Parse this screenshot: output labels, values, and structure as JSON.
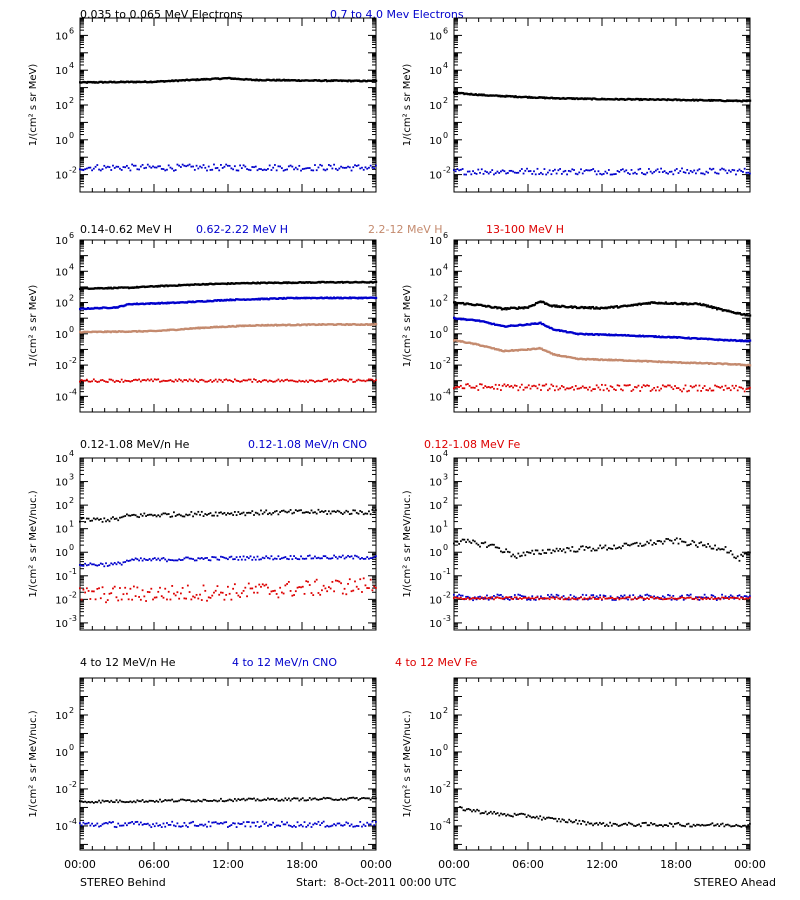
{
  "colors": {
    "black": "#000000",
    "blue": "#0000cc",
    "tan": "#c48a6e",
    "red": "#dd0000"
  },
  "rows": [
    {
      "title_parts": [
        {
          "text": "0.035 to 0.065 MeV Electrons",
          "color": "#000000"
        },
        {
          "text": "0.7 to 4.0 Mev Electrons",
          "color": "#0000cc"
        }
      ],
      "ylabel": "1/(cm² s sr MeV)"
    },
    {
      "title_parts": [
        {
          "text": "0.14-0.62 MeV H",
          "color": "#000000"
        },
        {
          "text": "0.62-2.22 MeV H",
          "color": "#0000cc"
        },
        {
          "text": "2.2-12 MeV H",
          "color": "#c48a6e"
        },
        {
          "text": "13-100 MeV H",
          "color": "#dd0000"
        }
      ],
      "ylabel": "1/(cm² s sr MeV)"
    },
    {
      "title_parts": [
        {
          "text": "0.12-1.08 MeV/n He",
          "color": "#000000"
        },
        {
          "text": "0.12-1.08 MeV/n CNO",
          "color": "#0000cc"
        },
        {
          "text": "0.12-1.08 MeV Fe",
          "color": "#dd0000"
        }
      ],
      "ylabel": "1/(cm² s sr MeV/nuc.)"
    },
    {
      "title_parts": [
        {
          "text": "4 to 12 MeV/n He",
          "color": "#000000"
        },
        {
          "text": "4 to 12 MeV/n CNO",
          "color": "#0000cc"
        },
        {
          "text": "4 to 12 MeV Fe",
          "color": "#dd0000"
        }
      ],
      "ylabel": "1/(cm² s sr MeV/nuc.)"
    }
  ],
  "x_ticks": [
    "00:00",
    "06:00",
    "12:00",
    "18:00",
    "00:00"
  ],
  "footer": {
    "left": "STEREO Behind",
    "center": "Start:  8-Oct-2011 00:00 UTC",
    "right": "STEREO Ahead"
  },
  "chart_data": [
    {
      "type": "scatter",
      "panel": "row1-behind",
      "y_scale": "log",
      "ylim": [
        0.001,
        10000000
      ],
      "xlim": [
        0,
        24
      ],
      "y_ticks": [
        {
          "exp": 6
        },
        {
          "exp": 4
        },
        {
          "exp": 2
        },
        {
          "exp": 0
        },
        {
          "exp": -2
        }
      ],
      "series": [
        {
          "color": "#000000",
          "style": "line",
          "points": [
            [
              0,
              2000
            ],
            [
              6,
              2200
            ],
            [
              10,
              3000
            ],
            [
              12,
              3500
            ],
            [
              14,
              2800
            ],
            [
              18,
              2600
            ],
            [
              24,
              2400
            ]
          ],
          "scatter": 0.03
        },
        {
          "color": "#0000cc",
          "style": "dots",
          "points": [
            [
              0,
              0.025
            ],
            [
              12,
              0.025
            ],
            [
              24,
              0.025
            ]
          ],
          "scatter": 0.18
        }
      ]
    },
    {
      "type": "scatter",
      "panel": "row1-ahead",
      "y_scale": "log",
      "ylim": [
        0.001,
        10000000
      ],
      "xlim": [
        0,
        24
      ],
      "y_ticks": [
        {
          "exp": 6
        },
        {
          "exp": 4
        },
        {
          "exp": 2
        },
        {
          "exp": 0
        },
        {
          "exp": -2
        }
      ],
      "series": [
        {
          "color": "#000000",
          "style": "line",
          "points": [
            [
              0,
              500
            ],
            [
              3,
              350
            ],
            [
              8,
              250
            ],
            [
              12,
              220
            ],
            [
              18,
              200
            ],
            [
              24,
              170
            ]
          ],
          "scatter": 0.03
        },
        {
          "color": "#0000cc",
          "style": "dots",
          "points": [
            [
              0,
              0.015
            ],
            [
              12,
              0.015
            ],
            [
              24,
              0.015
            ]
          ],
          "scatter": 0.18
        }
      ]
    },
    {
      "type": "scatter",
      "panel": "row2-behind",
      "y_scale": "log",
      "ylim": [
        1e-05,
        1000000
      ],
      "xlim": [
        0,
        24
      ],
      "y_ticks": [
        {
          "exp": 6
        },
        {
          "exp": 4
        },
        {
          "exp": 2
        },
        {
          "exp": 0
        },
        {
          "exp": -2
        },
        {
          "exp": -4
        }
      ],
      "series": [
        {
          "color": "#000000",
          "style": "line",
          "points": [
            [
              0,
              800
            ],
            [
              4,
              900
            ],
            [
              6,
              1100
            ],
            [
              10,
              1500
            ],
            [
              14,
              1800
            ],
            [
              20,
              2000
            ],
            [
              24,
              2000
            ]
          ],
          "scatter": 0.03
        },
        {
          "color": "#0000cc",
          "style": "line",
          "points": [
            [
              0,
              40
            ],
            [
              3,
              50
            ],
            [
              4,
              80
            ],
            [
              8,
              100
            ],
            [
              12,
              150
            ],
            [
              18,
              200
            ],
            [
              24,
              200
            ]
          ],
          "scatter": 0.03
        },
        {
          "color": "#c48a6e",
          "style": "line",
          "points": [
            [
              0,
              1.3
            ],
            [
              6,
              1.5
            ],
            [
              10,
              2.5
            ],
            [
              14,
              3.5
            ],
            [
              20,
              4
            ],
            [
              24,
              4
            ]
          ],
          "scatter": 0.03
        },
        {
          "color": "#dd0000",
          "style": "dots",
          "points": [
            [
              0,
              0.001
            ],
            [
              12,
              0.001
            ],
            [
              24,
              0.001
            ]
          ],
          "scatter": 0.09
        }
      ]
    },
    {
      "type": "scatter",
      "panel": "row2-ahead",
      "y_scale": "log",
      "ylim": [
        1e-05,
        1000000
      ],
      "xlim": [
        0,
        24
      ],
      "y_ticks": [
        {
          "exp": 6
        },
        {
          "exp": 4
        },
        {
          "exp": 2
        },
        {
          "exp": 0
        },
        {
          "exp": -2
        },
        {
          "exp": -4
        }
      ],
      "series": [
        {
          "color": "#000000",
          "style": "line",
          "points": [
            [
              0,
              100
            ],
            [
              2,
              70
            ],
            [
              4,
              40
            ],
            [
              6,
              50
            ],
            [
              7,
              120
            ],
            [
              8,
              60
            ],
            [
              10,
              50
            ],
            [
              12,
              45
            ],
            [
              14,
              60
            ],
            [
              16,
              100
            ],
            [
              20,
              80
            ],
            [
              22,
              30
            ],
            [
              24,
              15
            ]
          ],
          "scatter": 0.05
        },
        {
          "color": "#0000cc",
          "style": "line",
          "points": [
            [
              0,
              10
            ],
            [
              2,
              7
            ],
            [
              4,
              3
            ],
            [
              6,
              4
            ],
            [
              7,
              5
            ],
            [
              8,
              2
            ],
            [
              10,
              1
            ],
            [
              14,
              0.8
            ],
            [
              18,
              0.6
            ],
            [
              22,
              0.4
            ],
            [
              24,
              0.35
            ]
          ],
          "scatter": 0.03
        },
        {
          "color": "#c48a6e",
          "style": "line",
          "points": [
            [
              0,
              0.4
            ],
            [
              2,
              0.2
            ],
            [
              4,
              0.08
            ],
            [
              6,
              0.1
            ],
            [
              7,
              0.12
            ],
            [
              8,
              0.05
            ],
            [
              10,
              0.025
            ],
            [
              14,
              0.02
            ],
            [
              18,
              0.015
            ],
            [
              22,
              0.012
            ],
            [
              24,
              0.01
            ]
          ],
          "scatter": 0.03
        },
        {
          "color": "#dd0000",
          "style": "dots",
          "points": [
            [
              0,
              0.0004
            ],
            [
              12,
              0.00035
            ],
            [
              24,
              0.0003
            ]
          ],
          "scatter": 0.2
        }
      ]
    },
    {
      "type": "scatter",
      "panel": "row3-behind",
      "y_scale": "log",
      "ylim": [
        0.0005,
        10000
      ],
      "xlim": [
        0,
        24
      ],
      "y_ticks": [
        {
          "exp": 4
        },
        {
          "exp": 3
        },
        {
          "exp": 2
        },
        {
          "exp": 1
        },
        {
          "exp": 0
        },
        {
          "exp": -1
        },
        {
          "exp": -2
        },
        {
          "exp": -3
        }
      ],
      "series": [
        {
          "color": "#000000",
          "style": "dots",
          "points": [
            [
              0,
              22
            ],
            [
              3,
              25
            ],
            [
              4,
              35
            ],
            [
              8,
              40
            ],
            [
              12,
              45
            ],
            [
              18,
              50
            ],
            [
              24,
              50
            ]
          ],
          "scatter": 0.1
        },
        {
          "color": "#0000cc",
          "style": "dots",
          "points": [
            [
              0,
              0.3
            ],
            [
              3,
              0.3
            ],
            [
              4,
              0.45
            ],
            [
              8,
              0.5
            ],
            [
              12,
              0.55
            ],
            [
              18,
              0.6
            ],
            [
              24,
              0.6
            ]
          ],
          "scatter": 0.08
        },
        {
          "color": "#dd0000",
          "style": "dots",
          "points": [
            [
              0,
              0.015
            ],
            [
              12,
              0.02
            ],
            [
              24,
              0.04
            ]
          ],
          "scatter": 0.35
        }
      ]
    },
    {
      "type": "scatter",
      "panel": "row3-ahead",
      "y_scale": "log",
      "ylim": [
        0.0005,
        10000
      ],
      "xlim": [
        0,
        24
      ],
      "y_ticks": [
        {
          "exp": 4
        },
        {
          "exp": 3
        },
        {
          "exp": 2
        },
        {
          "exp": 1
        },
        {
          "exp": 0
        },
        {
          "exp": -1
        },
        {
          "exp": -2
        },
        {
          "exp": -3
        }
      ],
      "series": [
        {
          "color": "#000000",
          "style": "dots",
          "points": [
            [
              0,
              3
            ],
            [
              3,
              2
            ],
            [
              5,
              0.7
            ],
            [
              8,
              1.2
            ],
            [
              12,
              1.5
            ],
            [
              14,
              1.8
            ],
            [
              16,
              2.5
            ],
            [
              18,
              3
            ],
            [
              20,
              2
            ],
            [
              22,
              1.5
            ],
            [
              23,
              0.5
            ],
            [
              24,
              0.9
            ]
          ],
          "scatter": 0.12
        },
        {
          "color": "#0000cc",
          "style": "dots",
          "points": [
            [
              0,
              0.012
            ],
            [
              12,
              0.012
            ],
            [
              24,
              0.012
            ]
          ],
          "scatter": 0.12
        },
        {
          "color": "#dd0000",
          "style": "dots",
          "points": [
            [
              0,
              0.011
            ],
            [
              12,
              0.011
            ],
            [
              24,
              0.011
            ]
          ],
          "scatter": 0.05
        }
      ]
    },
    {
      "type": "scatter",
      "panel": "row4-behind",
      "y_scale": "log",
      "ylim": [
        5e-06,
        10000
      ],
      "xlim": [
        0,
        24
      ],
      "y_ticks": [
        {
          "exp": 2
        },
        {
          "exp": 0
        },
        {
          "exp": -2
        },
        {
          "exp": -4
        }
      ],
      "series": [
        {
          "color": "#000000",
          "style": "dots",
          "points": [
            [
              0,
              0.002
            ],
            [
              12,
              0.0025
            ],
            [
              24,
              0.003
            ]
          ],
          "scatter": 0.07
        },
        {
          "color": "#0000cc",
          "style": "dots",
          "points": [
            [
              0,
              0.00012
            ],
            [
              12,
              0.00012
            ],
            [
              24,
              0.00012
            ]
          ],
          "scatter": 0.15
        }
      ]
    },
    {
      "type": "scatter",
      "panel": "row4-ahead",
      "y_scale": "log",
      "ylim": [
        5e-06,
        10000
      ],
      "xlim": [
        0,
        24
      ],
      "y_ticks": [
        {
          "exp": 2
        },
        {
          "exp": 0
        },
        {
          "exp": -2
        },
        {
          "exp": -4
        }
      ],
      "series": [
        {
          "color": "#000000",
          "style": "dots",
          "points": [
            [
              0.5,
              0.0009
            ],
            [
              2,
              0.0006
            ],
            [
              4,
              0.0004
            ],
            [
              6,
              0.00035
            ],
            [
              8,
              0.00022
            ],
            [
              12,
              0.00012
            ],
            [
              24,
              0.00011
            ]
          ],
          "scatter": 0.1
        }
      ]
    }
  ]
}
